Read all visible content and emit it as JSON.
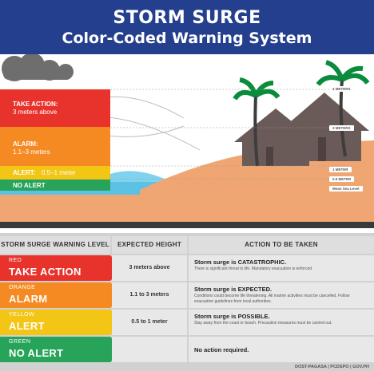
{
  "header": {
    "title": "STORM SURGE",
    "subtitle": "Color-Coded Warning System"
  },
  "levels": {
    "take_action": {
      "name": "TAKE ACTION:",
      "sub": "3 meters above"
    },
    "alarm": {
      "name": "ALARM:",
      "sub": "1.1–3 meters"
    },
    "alert": {
      "name": "ALERT:",
      "sub": "0.5–1 meter"
    },
    "no_alert": {
      "name": "NO ALERT"
    }
  },
  "markers": {
    "m4": "4 METERS",
    "m3": "3 METERS",
    "m1": "1 METER",
    "m05": "0.5 METER",
    "msl": "Mean Sea Level"
  },
  "table": {
    "headers": [
      "STORM SURGE WARNING LEVEL",
      "EXPECTED HEIGHT",
      "ACTION TO BE TAKEN"
    ],
    "rows": [
      {
        "color_name": "RED",
        "level": "TAKE ACTION",
        "height": "3 meters above",
        "lead": "Storm surge is CATASTROPHIC.",
        "desc": "There is significant threat to life. Mandatory evacuation is enforced."
      },
      {
        "color_name": "ORANGE",
        "level": "ALARM",
        "height": "1.1 to 3 meters",
        "lead": "Storm surge is EXPECTED.",
        "desc": "Conditions could become life threatening. All marine activities must be cancelled. Follow evacuation guidelines from local authorities."
      },
      {
        "color_name": "YELLOW",
        "level": "ALERT",
        "height": "0.5 to 1 meter",
        "lead": "Storm surge is POSSIBLE.",
        "desc": "Stay away from the coast or beach. Precaution measures must be carried out."
      },
      {
        "color_name": "GREEN",
        "level": "NO ALERT",
        "height": "",
        "lead": "No action required.",
        "desc": ""
      }
    ]
  },
  "footer": "DOST-PAGASA | PCDSPO | GOV.PH",
  "colors": {
    "header": "#243f8e",
    "red": "#e8332d",
    "orange": "#f58a23",
    "yellow": "#f3c515",
    "green": "#27a35a",
    "sand": "#f0a672",
    "sea": "#7fd3ee"
  }
}
